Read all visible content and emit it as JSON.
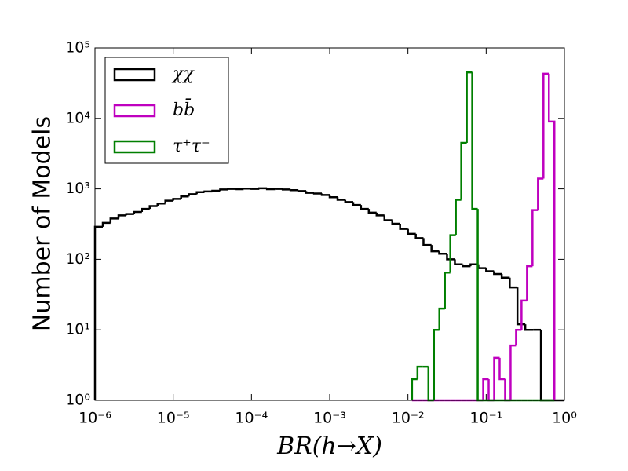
{
  "chart_data": {
    "type": "histogram",
    "xlabel": "BR(h→X)",
    "ylabel": "Number of Models",
    "xscale": "log",
    "yscale": "log",
    "xlim": [
      1e-06,
      1
    ],
    "ylim": [
      1,
      100000
    ],
    "xticks": [
      {
        "value": 1e-06,
        "label": "10⁻⁶"
      },
      {
        "value": 1e-05,
        "label": "10⁻⁵"
      },
      {
        "value": 0.0001,
        "label": "10⁻⁴"
      },
      {
        "value": 0.001,
        "label": "10⁻³"
      },
      {
        "value": 0.01,
        "label": "10⁻²"
      },
      {
        "value": 0.1,
        "label": "10⁻¹"
      },
      {
        "value": 1,
        "label": "10⁰"
      }
    ],
    "yticks": [
      {
        "value": 1,
        "label": "10⁰"
      },
      {
        "value": 10,
        "label": "10¹"
      },
      {
        "value": 100,
        "label": "10²"
      },
      {
        "value": 1000,
        "label": "10³"
      },
      {
        "value": 10000,
        "label": "10⁴"
      },
      {
        "value": 100000,
        "label": "10⁵"
      }
    ],
    "legend": "upper left",
    "series": [
      {
        "name": "χχ",
        "color": "#000000",
        "bins": [
          1e-06,
          1.26e-06,
          1.58e-06,
          2e-06,
          2.51e-06,
          3.16e-06,
          3.98e-06,
          5.01e-06,
          6.31e-06,
          7.94e-06,
          1e-05,
          1.26e-05,
          1.58e-05,
          2e-05,
          2.51e-05,
          3.16e-05,
          3.98e-05,
          5.01e-05,
          6.31e-05,
          7.94e-05,
          0.0001,
          0.000126,
          0.000158,
          0.0002,
          0.000251,
          0.000316,
          0.000398,
          0.000501,
          0.000631,
          0.000794,
          0.001,
          0.00126,
          0.00158,
          0.002,
          0.00251,
          0.00316,
          0.00398,
          0.00501,
          0.00631,
          0.00794,
          0.01,
          0.0126,
          0.0158,
          0.02,
          0.0251,
          0.0316,
          0.0398,
          0.0501,
          0.0631,
          0.0794,
          0.1,
          0.126,
          0.158,
          0.2,
          0.251,
          0.316,
          0.398,
          0.501,
          0.631,
          0.794,
          1
        ],
        "counts": [
          290,
          330,
          380,
          420,
          440,
          470,
          520,
          570,
          620,
          680,
          720,
          780,
          840,
          900,
          920,
          940,
          980,
          1000,
          990,
          1010,
          1000,
          1020,
          990,
          1000,
          980,
          960,
          930,
          880,
          860,
          820,
          760,
          700,
          650,
          590,
          520,
          460,
          420,
          360,
          320,
          270,
          230,
          200,
          160,
          130,
          120,
          100,
          85,
          80,
          85,
          75,
          68,
          62,
          55,
          40,
          12,
          10,
          10,
          0,
          0,
          0
        ]
      },
      {
        "name": "bb̄",
        "color": "#bf00bf",
        "bins": [
          0.01127,
          0.01324,
          0.01556,
          0.01828,
          0.02148,
          0.02523,
          0.02965,
          0.03483,
          0.04093,
          0.04808,
          0.05649,
          0.06637,
          0.07798,
          0.09162,
          0.1076,
          0.1265,
          0.1486,
          0.1746,
          0.2051,
          0.241,
          0.2831,
          0.3327,
          0.3908,
          0.4592,
          0.5395,
          0.6339,
          0.7447
        ],
        "counts": [
          0,
          0,
          0,
          0,
          0,
          0,
          0,
          0,
          0,
          0,
          0,
          0,
          0,
          2,
          0,
          4,
          2,
          0,
          6,
          10,
          26,
          80,
          500,
          1400,
          43000,
          9000
        ]
      },
      {
        "name": "τ⁺τ⁻",
        "color": "#007f00",
        "bins": [
          0.01127,
          0.01324,
          0.01556,
          0.01828,
          0.02148,
          0.02523,
          0.02965,
          0.03483,
          0.04093,
          0.04808,
          0.05649,
          0.06637,
          0.07798,
          0.09162,
          0.1076,
          0.1265,
          0.1486,
          0.1746,
          0.2051,
          0.241,
          0.2831,
          0.3327,
          0.3908,
          0.4592,
          0.5395,
          0.6339,
          0.7447
        ],
        "counts": [
          2,
          3,
          3,
          0,
          10,
          20,
          65,
          220,
          700,
          4500,
          45000,
          520,
          0,
          0,
          0,
          0,
          0,
          0,
          0,
          0,
          0,
          0,
          0,
          0,
          0,
          0
        ]
      }
    ]
  }
}
